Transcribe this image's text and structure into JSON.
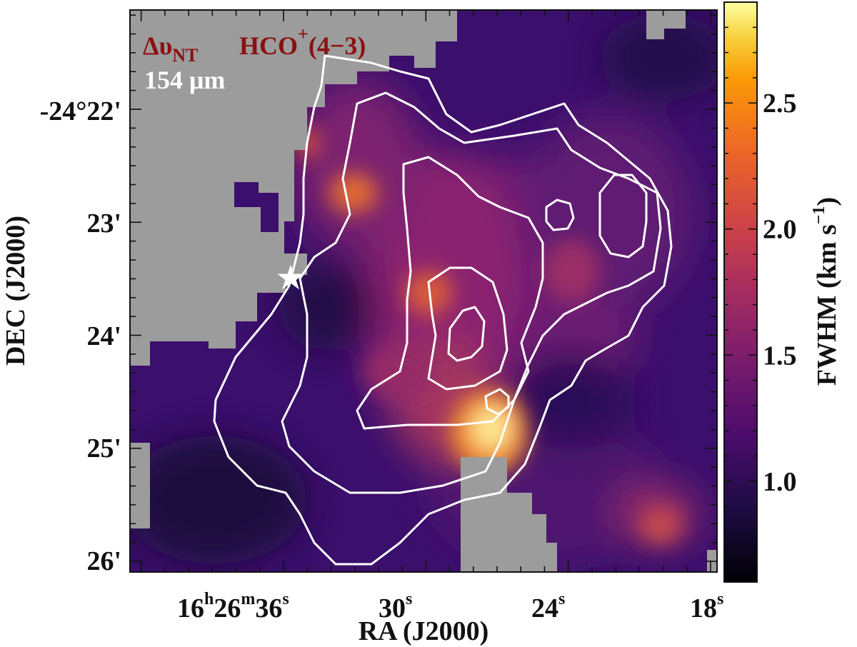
{
  "chart_data": {
    "type": "heatmap",
    "x_axis": {
      "label": "RA (J2000)",
      "ticks": [
        {
          "h": "16",
          "m": "26",
          "s": "36",
          "show_hm": true
        },
        {
          "s": "30"
        },
        {
          "s": "24"
        },
        {
          "s": "18"
        }
      ]
    },
    "y_axis": {
      "label": "DEC (J2000)",
      "ticks": [
        "-24°22'",
        "23'",
        "24'",
        "25'",
        "26'"
      ]
    },
    "colorbar": {
      "label": "FWHM (km s",
      "label_exp": "−1",
      "label_close": ")",
      "range": [
        0.6,
        2.9
      ],
      "ticks": [
        "1.0",
        "1.5",
        "2.0",
        "2.5"
      ],
      "tick_values": [
        1.0,
        1.5,
        2.0,
        2.5
      ],
      "colormap": "inferno"
    },
    "annotations": {
      "map_label": {
        "base": "Δυ",
        "sub": "NT"
      },
      "line_label": {
        "base": "HCO",
        "sup": "+",
        "rest": "(4−3)"
      },
      "contour_label": "154 μm"
    },
    "masked_color": "#9c9c9c",
    "contour_color": "#ffffff",
    "star_marker": {
      "ra_s": 35,
      "dec_min": 23.45
    },
    "peak_value": 2.9,
    "background_value": 1.1
  }
}
